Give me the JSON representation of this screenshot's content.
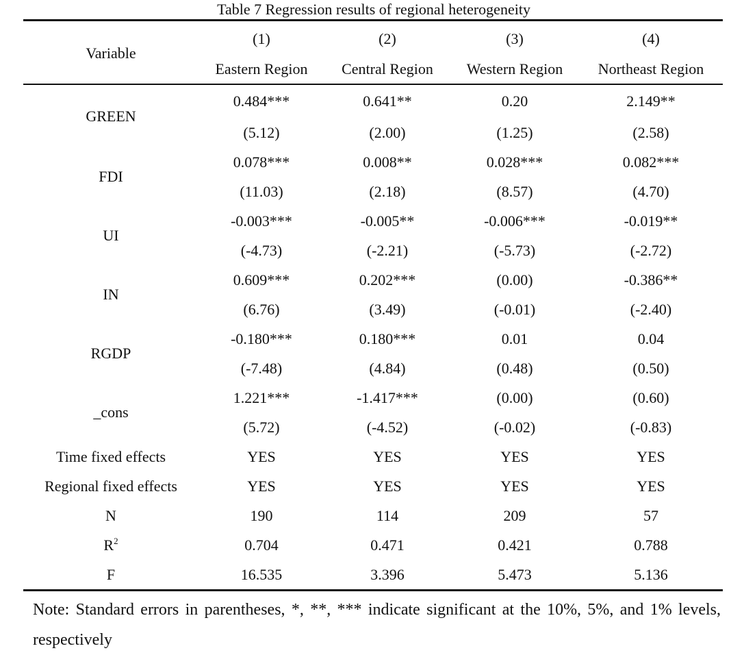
{
  "title": "Table 7 Regression results of regional heterogeneity",
  "header": {
    "variable_label": "Variable",
    "column_numbers": [
      "(1)",
      "(2)",
      "(3)",
      "(4)"
    ],
    "column_names": [
      "Eastern Region",
      "Central Region",
      "Western Region",
      "Northeast Region"
    ]
  },
  "coef_rows": [
    {
      "variable": "GREEN",
      "coef": [
        "0.484***",
        "0.641**",
        "0.20",
        "2.149**"
      ],
      "se": [
        "(5.12)",
        "(2.00)",
        "(1.25)",
        "(2.58)"
      ]
    },
    {
      "variable": "FDI",
      "coef": [
        "0.078***",
        "0.008**",
        "0.028***",
        "0.082***"
      ],
      "se": [
        "(11.03)",
        "(2.18)",
        "(8.57)",
        "(4.70)"
      ]
    },
    {
      "variable": "UI",
      "coef": [
        "-0.003***",
        "-0.005**",
        "-0.006***",
        "-0.019**"
      ],
      "se": [
        "(-4.73)",
        "(-2.21)",
        "(-5.73)",
        "(-2.72)"
      ]
    },
    {
      "variable": "IN",
      "coef": [
        "0.609***",
        "0.202***",
        "(0.00)",
        "-0.386**"
      ],
      "se": [
        "(6.76)",
        "(3.49)",
        "(-0.01)",
        "(-2.40)"
      ]
    },
    {
      "variable": "RGDP",
      "coef": [
        "-0.180***",
        "0.180***",
        "0.01",
        "0.04"
      ],
      "se": [
        "(-7.48)",
        "(4.84)",
        "(0.48)",
        "(0.50)"
      ]
    },
    {
      "variable": "_cons",
      "coef": [
        "1.221***",
        "-1.417***",
        "(0.00)",
        "(0.60)"
      ],
      "se": [
        "(5.72)",
        "(-4.52)",
        "(-0.02)",
        "(-0.83)"
      ]
    }
  ],
  "stat_rows": [
    {
      "label": "Time fixed effects",
      "values": [
        "YES",
        "YES",
        "YES",
        "YES"
      ]
    },
    {
      "label": "Regional fixed effects",
      "values": [
        "YES",
        "YES",
        "YES",
        "YES"
      ]
    },
    {
      "label": "N",
      "values": [
        "190",
        "114",
        "209",
        "57"
      ]
    }
  ],
  "r2_row": {
    "label_base": "R",
    "label_sup": "2",
    "values": [
      "0.704",
      "0.471",
      "0.421",
      "0.788"
    ]
  },
  "f_row": {
    "label": "F",
    "values": [
      "16.535",
      "3.396",
      "5.473",
      "5.136"
    ]
  },
  "note": "Note: Standard errors in parentheses, *, **, *** indicate significant at the 10%, 5%, and 1% levels, respectively"
}
